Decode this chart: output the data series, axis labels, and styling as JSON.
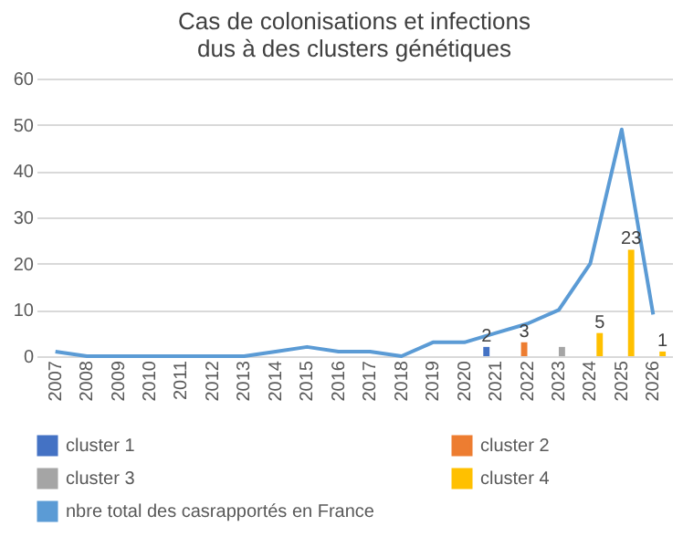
{
  "chart_data": {
    "type": "bar",
    "title": "Cas de colonisations et infections dus à des clusters génétiques",
    "categories": [
      "2007",
      "2008",
      "2009",
      "2010",
      "2011",
      "2012",
      "2013",
      "2014",
      "2015",
      "2016",
      "2017",
      "2018",
      "2019",
      "2020",
      "2021",
      "2022",
      "2023",
      "2024",
      "2025",
      "2026"
    ],
    "series": [
      {
        "name": "cluster 1",
        "type": "bar",
        "color": "#4472c4",
        "values": [
          null,
          null,
          null,
          null,
          null,
          null,
          null,
          null,
          null,
          null,
          null,
          null,
          null,
          null,
          2,
          null,
          null,
          null,
          null,
          null
        ],
        "value_labels": [
          null,
          null,
          null,
          null,
          null,
          null,
          null,
          null,
          null,
          null,
          null,
          null,
          null,
          null,
          "2",
          null,
          null,
          null,
          null,
          null
        ]
      },
      {
        "name": "cluster 2",
        "type": "bar",
        "color": "#ed7d31",
        "values": [
          null,
          null,
          null,
          null,
          null,
          null,
          null,
          null,
          null,
          null,
          null,
          null,
          null,
          null,
          null,
          3,
          null,
          null,
          null,
          null
        ],
        "value_labels": [
          null,
          null,
          null,
          null,
          null,
          null,
          null,
          null,
          null,
          null,
          null,
          null,
          null,
          null,
          null,
          "3",
          null,
          null,
          null,
          null
        ]
      },
      {
        "name": "cluster 3",
        "type": "bar",
        "color": "#a5a5a5",
        "values": [
          null,
          null,
          null,
          null,
          null,
          null,
          null,
          null,
          null,
          null,
          null,
          null,
          null,
          null,
          null,
          null,
          2,
          null,
          null,
          null
        ]
      },
      {
        "name": "cluster 4",
        "type": "bar",
        "color": "#ffc000",
        "values": [
          null,
          null,
          null,
          null,
          null,
          null,
          null,
          null,
          null,
          null,
          null,
          null,
          null,
          null,
          null,
          null,
          null,
          5,
          23,
          1
        ],
        "value_labels": [
          null,
          null,
          null,
          null,
          null,
          null,
          null,
          null,
          null,
          null,
          null,
          null,
          null,
          null,
          null,
          null,
          null,
          "5",
          "23",
          "1"
        ]
      },
      {
        "name": "nbre total des casrapportés en France",
        "type": "line",
        "color": "#5b9bd5",
        "values": [
          1,
          0,
          0,
          0,
          0,
          0,
          0,
          1,
          2,
          1,
          1,
          0,
          3,
          3,
          5,
          7,
          10,
          20,
          49,
          9
        ]
      }
    ],
    "ylim": [
      0,
      60
    ],
    "yticks": [
      0,
      10,
      20,
      30,
      40,
      50,
      60
    ],
    "grid": "y",
    "legend": "bottom"
  }
}
